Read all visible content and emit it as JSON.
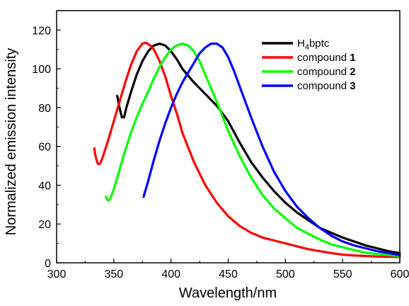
{
  "chart_data": {
    "type": "line",
    "title": "",
    "xlabel": "Wavelength/nm",
    "ylabel": "Normalized emission intensity",
    "xlim": [
      300,
      600
    ],
    "ylim": [
      0,
      130
    ],
    "x_ticks": [
      300,
      350,
      400,
      450,
      500,
      550,
      600
    ],
    "y_ticks": [
      0,
      20,
      40,
      60,
      80,
      100,
      120
    ],
    "grid": false,
    "legend_position": "top-right",
    "series": [
      {
        "name": "H4bptc",
        "legend_main": "H",
        "legend_sub": "4",
        "legend_tail": "bptc",
        "legend_bold": "",
        "color": "#000000",
        "points": [
          [
            353,
            86
          ],
          [
            355,
            80
          ],
          [
            357,
            75
          ],
          [
            359,
            75
          ],
          [
            361,
            80
          ],
          [
            365,
            88
          ],
          [
            370,
            97
          ],
          [
            375,
            104
          ],
          [
            380,
            109
          ],
          [
            385,
            112
          ],
          [
            390,
            113
          ],
          [
            395,
            112
          ],
          [
            400,
            109
          ],
          [
            405,
            105
          ],
          [
            410,
            100
          ],
          [
            420,
            93
          ],
          [
            430,
            87
          ],
          [
            440,
            81
          ],
          [
            450,
            73
          ],
          [
            460,
            62
          ],
          [
            470,
            52
          ],
          [
            480,
            44
          ],
          [
            490,
            37
          ],
          [
            500,
            31
          ],
          [
            510,
            26
          ],
          [
            520,
            22
          ],
          [
            530,
            18
          ],
          [
            540,
            15.5
          ],
          [
            550,
            13
          ],
          [
            560,
            11
          ],
          [
            570,
            9
          ],
          [
            580,
            7.5
          ],
          [
            590,
            6
          ],
          [
            600,
            5
          ]
        ]
      },
      {
        "name": "compound 1",
        "legend_main": "compound ",
        "legend_sub": "",
        "legend_tail": "",
        "legend_bold": "1",
        "color": "#ff0000",
        "points": [
          [
            333,
            59
          ],
          [
            334,
            55
          ],
          [
            336,
            51
          ],
          [
            338,
            51
          ],
          [
            340,
            54
          ],
          [
            345,
            63
          ],
          [
            350,
            73
          ],
          [
            355,
            83
          ],
          [
            360,
            93
          ],
          [
            365,
            102
          ],
          [
            370,
            109
          ],
          [
            375,
            113
          ],
          [
            378,
            113.5
          ],
          [
            382,
            112
          ],
          [
            385,
            110
          ],
          [
            390,
            104
          ],
          [
            395,
            96
          ],
          [
            400,
            86
          ],
          [
            405,
            77
          ],
          [
            410,
            67
          ],
          [
            420,
            52
          ],
          [
            430,
            40
          ],
          [
            440,
            31
          ],
          [
            450,
            24
          ],
          [
            460,
            19
          ],
          [
            470,
            15.5
          ],
          [
            480,
            13
          ],
          [
            490,
            11.5
          ],
          [
            500,
            10
          ],
          [
            510,
            8.5
          ],
          [
            520,
            7
          ],
          [
            530,
            6
          ],
          [
            540,
            5
          ],
          [
            550,
            4.2
          ],
          [
            560,
            3.8
          ],
          [
            570,
            3.5
          ],
          [
            580,
            3.2
          ],
          [
            590,
            3.1
          ],
          [
            600,
            3
          ]
        ]
      },
      {
        "name": "compound 2",
        "legend_main": "compound ",
        "legend_sub": "",
        "legend_tail": "",
        "legend_bold": "2",
        "color": "#00ff00",
        "points": [
          [
            343,
            34
          ],
          [
            345,
            32
          ],
          [
            347,
            33
          ],
          [
            350,
            38
          ],
          [
            355,
            48
          ],
          [
            360,
            58
          ],
          [
            365,
            67
          ],
          [
            370,
            75
          ],
          [
            375,
            82
          ],
          [
            380,
            88
          ],
          [
            385,
            95
          ],
          [
            390,
            101
          ],
          [
            395,
            106
          ],
          [
            400,
            110
          ],
          [
            405,
            112
          ],
          [
            410,
            113
          ],
          [
            415,
            112
          ],
          [
            420,
            109
          ],
          [
            425,
            104
          ],
          [
            430,
            97
          ],
          [
            440,
            83
          ],
          [
            450,
            68
          ],
          [
            460,
            55
          ],
          [
            470,
            44
          ],
          [
            480,
            35
          ],
          [
            490,
            28
          ],
          [
            500,
            23
          ],
          [
            510,
            18
          ],
          [
            520,
            15
          ],
          [
            530,
            12
          ],
          [
            540,
            9.5
          ],
          [
            550,
            8
          ],
          [
            560,
            6.5
          ],
          [
            570,
            5.2
          ],
          [
            580,
            4.5
          ],
          [
            590,
            4
          ],
          [
            600,
            3.5
          ]
        ]
      },
      {
        "name": "compound 3",
        "legend_main": "compound ",
        "legend_sub": "",
        "legend_tail": "",
        "legend_bold": "3",
        "color": "#0000ff",
        "points": [
          [
            376,
            34
          ],
          [
            380,
            42
          ],
          [
            385,
            53
          ],
          [
            390,
            63
          ],
          [
            395,
            72
          ],
          [
            400,
            80
          ],
          [
            405,
            87
          ],
          [
            410,
            93
          ],
          [
            415,
            98
          ],
          [
            420,
            103
          ],
          [
            425,
            108
          ],
          [
            430,
            111
          ],
          [
            435,
            113
          ],
          [
            440,
            113
          ],
          [
            445,
            111
          ],
          [
            450,
            106
          ],
          [
            455,
            99
          ],
          [
            460,
            91
          ],
          [
            470,
            75
          ],
          [
            480,
            60
          ],
          [
            490,
            47
          ],
          [
            500,
            37
          ],
          [
            510,
            29
          ],
          [
            520,
            23
          ],
          [
            530,
            18
          ],
          [
            540,
            14
          ],
          [
            550,
            11
          ],
          [
            560,
            9
          ],
          [
            570,
            7.5
          ],
          [
            580,
            6
          ],
          [
            590,
            5
          ],
          [
            600,
            4
          ]
        ]
      }
    ]
  }
}
